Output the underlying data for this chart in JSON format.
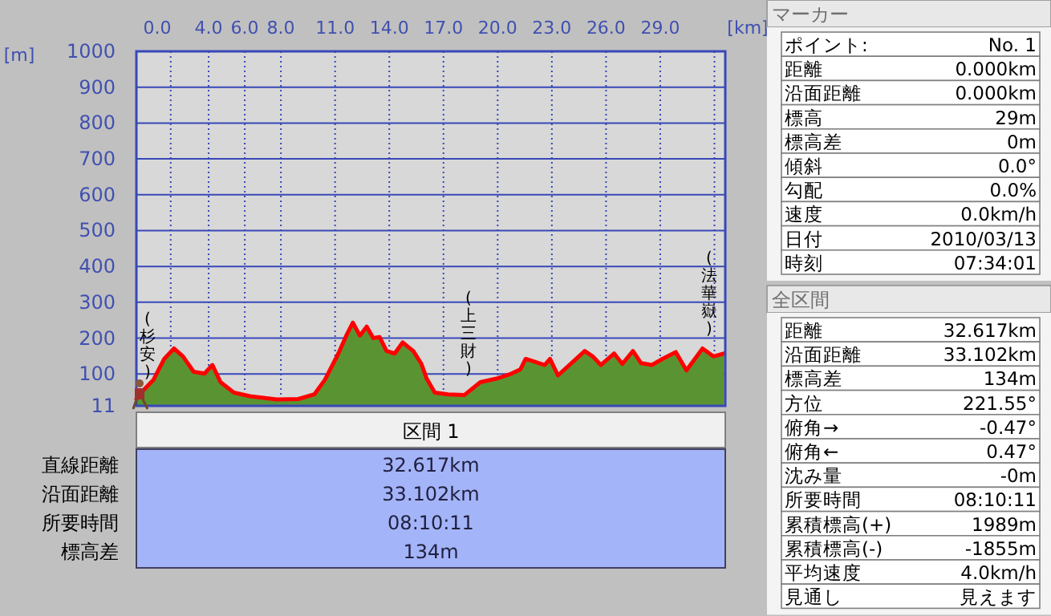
{
  "chart_data": [
    {
      "type": "area",
      "xlabel": "[km]",
      "ylabel": "[m]",
      "xlim": [
        0,
        32.6
      ],
      "ylim": [
        11,
        1000
      ],
      "xticks": [
        {
          "value": 0,
          "label": "0.0"
        },
        {
          "value": 1.9,
          "label": null
        },
        {
          "value": 4,
          "label": "4.0"
        },
        {
          "value": 6,
          "label": "6.0"
        },
        {
          "value": 8,
          "label": "8.0"
        },
        {
          "value": 11,
          "label": "11.0"
        },
        {
          "value": 14,
          "label": "14.0"
        },
        {
          "value": 17,
          "label": "17.0"
        },
        {
          "value": 20,
          "label": "20.0"
        },
        {
          "value": 23,
          "label": "23.0"
        },
        {
          "value": 26,
          "label": "26.0"
        },
        {
          "value": 29,
          "label": "29.0"
        },
        {
          "value": 32,
          "label": null
        }
      ],
      "yticks": [
        11,
        100,
        200,
        300,
        400,
        500,
        600,
        700,
        800,
        900,
        1000
      ],
      "grid": true,
      "x": [
        0,
        0.3,
        0.95,
        1.54,
        2.08,
        2.58,
        3.17,
        3.77,
        4.21,
        4.66,
        5.4,
        6.29,
        7.77,
        8.96,
        9.85,
        10.44,
        11.18,
        11.62,
        11.98,
        12.37,
        12.75,
        13.11,
        13.46,
        13.85,
        14.3,
        14.74,
        15.33,
        15.78,
        16.07,
        16.52,
        17.26,
        18.15,
        19.04,
        19.93,
        20.67,
        21.26,
        21.55,
        22.0,
        22.6,
        22.9,
        23.34,
        24.08,
        24.82,
        25.26,
        25.71,
        26.45,
        26.9,
        27.49,
        27.94,
        28.53,
        29.12,
        29.86,
        30.45,
        31.34,
        31.94,
        32.54
      ],
      "series": [
        {
          "type": "area",
          "color": "#5a9432",
          "values": [
            30,
            50,
            84,
            142,
            171,
            149,
            106,
            101,
            125,
            77,
            48,
            38,
            29,
            30,
            43,
            84,
            157,
            207,
            243,
            207,
            232,
            200,
            203,
            164,
            157,
            188,
            164,
            128,
            87,
            48,
            43,
            41,
            77,
            87,
            99,
            113,
            142,
            135,
            125,
            142,
            96,
            130,
            164,
            149,
            125,
            157,
            128,
            164,
            130,
            125,
            142,
            161,
            110,
            171,
            149,
            157
          ]
        },
        {
          "type": "line",
          "color": "#ff0000",
          "values": [
            30,
            50,
            84,
            142,
            171,
            149,
            106,
            101,
            125,
            77,
            48,
            38,
            29,
            30,
            43,
            84,
            157,
            207,
            243,
            207,
            232,
            200,
            203,
            164,
            157,
            188,
            164,
            128,
            87,
            48,
            43,
            41,
            77,
            87,
            99,
            113,
            142,
            135,
            125,
            142,
            96,
            130,
            164,
            149,
            125,
            157,
            128,
            164,
            130,
            125,
            142,
            161,
            110,
            171,
            149,
            157
          ]
        }
      ],
      "annotations": [
        "(杉安)",
        "(上三財)",
        "(法華嶽)"
      ]
    },
    {
      "type": "other",
      "title": "区間 1",
      "annotations": [
        "直線距離",
        "32.617km",
        "沿面距離",
        "33.102km",
        "所要時間",
        "08:10:11",
        "標高差",
        "134m"
      ]
    },
    {
      "type": "other",
      "title": "マーカー",
      "annotations": [
        "ポイント:",
        "No. 1",
        "距離",
        "0.000km",
        "沿面距離",
        "0.000km",
        "標高",
        "29m",
        "標高差",
        "0m",
        "傾斜",
        "0.0°",
        "勾配",
        "0.0%",
        "速度",
        "0.0km/h",
        "日付",
        "2010/03/13",
        "時刻",
        "07:34:01"
      ]
    },
    {
      "type": "other",
      "title": "全区間",
      "annotations": [
        "距離",
        "32.617km",
        "沿面距離",
        "33.102km",
        "標高差",
        "134m",
        "方位",
        "221.55°",
        "俯角→",
        "-0.47°",
        "俯角←",
        "0.47°",
        "沈み量",
        "-0m",
        "所要時間",
        "08:10:11",
        "累積標高(+)",
        "1989m",
        "累積標高(-)",
        "-1855m",
        "平均速度",
        "4.0km/h",
        "見通し",
        "見えます"
      ]
    }
  ]
}
